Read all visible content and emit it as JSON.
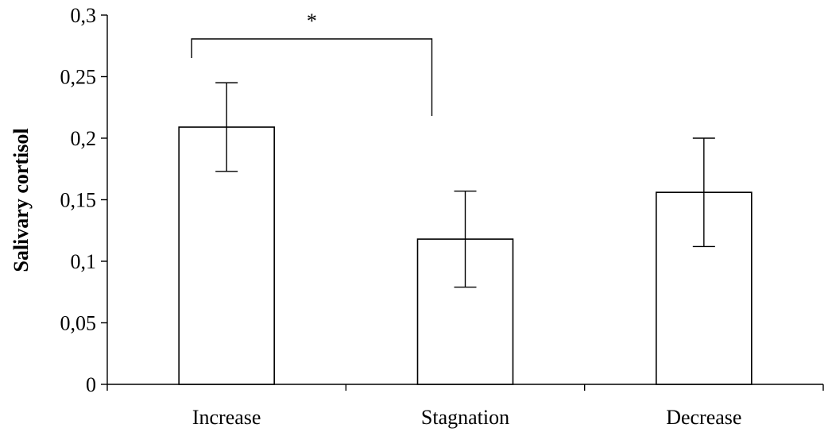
{
  "chart_data": {
    "type": "bar",
    "title": "",
    "xlabel": "",
    "ylabel": "Salivary cortisol",
    "ylim": [
      0,
      0.3
    ],
    "grid": false,
    "y_ticks": [
      0,
      0.05,
      0.1,
      0.15,
      0.2,
      0.25,
      0.3
    ],
    "y_tick_labels": [
      "0",
      "0,05",
      "0,1",
      "0,15",
      "0,2",
      "0,25",
      "0,3"
    ],
    "categories": [
      "Increase",
      "Stagnation",
      "Decrease"
    ],
    "values": [
      0.209,
      0.118,
      0.156
    ],
    "error": [
      0.036,
      0.039,
      0.044
    ],
    "bar_fill": "#ffffff",
    "bar_stroke": "#000000",
    "significance": [
      {
        "from": 0,
        "to": 1,
        "label": "*"
      }
    ]
  }
}
